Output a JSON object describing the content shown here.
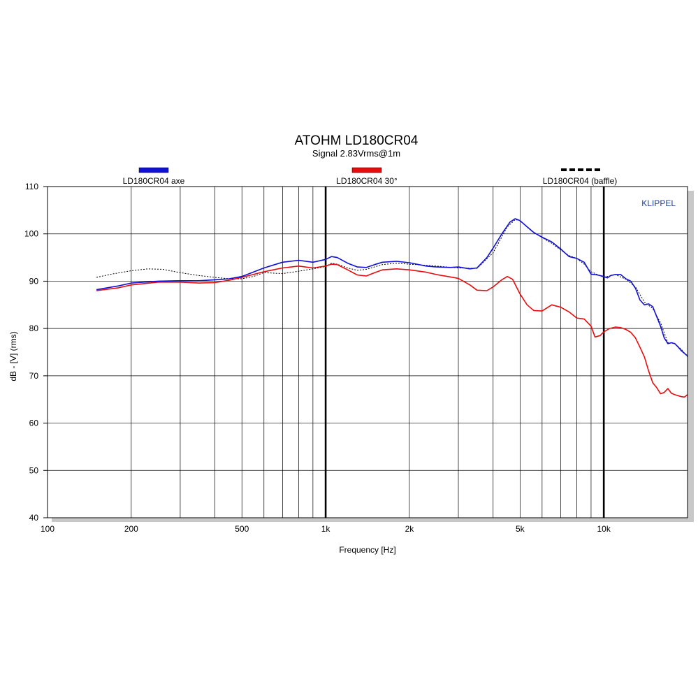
{
  "chart_data": {
    "type": "line",
    "title": "ATOHM LD180CR04",
    "subtitle": "Signal 2.83Vrms@1m",
    "xlabel": "Frequency [Hz]",
    "ylabel": "dB - [V] (rms)",
    "brand": "KLIPPEL",
    "x_scale": "log",
    "xlim": [
      100,
      20000
    ],
    "ylim": [
      40,
      110
    ],
    "x_ticks": [
      {
        "value": 100,
        "label": "100"
      },
      {
        "value": 200,
        "label": "200"
      },
      {
        "value": 500,
        "label": "500"
      },
      {
        "value": 1000,
        "label": "1k"
      },
      {
        "value": 2000,
        "label": "2k"
      },
      {
        "value": 5000,
        "label": "5k"
      },
      {
        "value": 10000,
        "label": "10k"
      }
    ],
    "y_ticks": [
      40,
      50,
      60,
      70,
      80,
      90,
      100,
      110
    ],
    "grid": true,
    "legend_position": "top",
    "series": [
      {
        "name": "LD180CR04 axe",
        "color": "#1010d8",
        "style": "solid",
        "points": [
          [
            150,
            88.2
          ],
          [
            180,
            89
          ],
          [
            200,
            89.6
          ],
          [
            250,
            90
          ],
          [
            300,
            90.1
          ],
          [
            350,
            90.1
          ],
          [
            400,
            90.3
          ],
          [
            450,
            90.5
          ],
          [
            500,
            91
          ],
          [
            600,
            92.8
          ],
          [
            700,
            94
          ],
          [
            800,
            94.4
          ],
          [
            900,
            94
          ],
          [
            1000,
            94.6
          ],
          [
            1050,
            95.2
          ],
          [
            1100,
            95
          ],
          [
            1200,
            93.8
          ],
          [
            1300,
            93
          ],
          [
            1400,
            92.9
          ],
          [
            1500,
            93.5
          ],
          [
            1600,
            94
          ],
          [
            1800,
            94.2
          ],
          [
            2000,
            93.9
          ],
          [
            2300,
            93.2
          ],
          [
            2500,
            93
          ],
          [
            2800,
            92.9
          ],
          [
            3000,
            93
          ],
          [
            3300,
            92.6
          ],
          [
            3500,
            92.8
          ],
          [
            3800,
            95
          ],
          [
            4000,
            97
          ],
          [
            4300,
            100
          ],
          [
            4600,
            102.5
          ],
          [
            4800,
            103.2
          ],
          [
            5000,
            102.8
          ],
          [
            5300,
            101.5
          ],
          [
            5600,
            100.3
          ],
          [
            6000,
            99.3
          ],
          [
            6500,
            98.3
          ],
          [
            7000,
            96.8
          ],
          [
            7500,
            95.2
          ],
          [
            8000,
            94.8
          ],
          [
            8500,
            94
          ],
          [
            9000,
            91.5
          ],
          [
            9500,
            91.3
          ],
          [
            10000,
            91
          ],
          [
            10300,
            90.7
          ],
          [
            10600,
            91.2
          ],
          [
            11000,
            91.4
          ],
          [
            11500,
            91.4
          ],
          [
            12000,
            90.5
          ],
          [
            12500,
            90
          ],
          [
            13000,
            88.5
          ],
          [
            13500,
            86
          ],
          [
            14000,
            85
          ],
          [
            14500,
            85.2
          ],
          [
            15000,
            84.6
          ],
          [
            15500,
            82.5
          ],
          [
            16000,
            80.5
          ],
          [
            16500,
            78
          ],
          [
            17000,
            76.8
          ],
          [
            17500,
            77
          ],
          [
            18000,
            76.8
          ],
          [
            18500,
            76.1
          ],
          [
            19000,
            75.3
          ],
          [
            20000,
            74.2
          ]
        ]
      },
      {
        "name": "LD180CR04 30°",
        "color": "#e80c0c",
        "style": "solid",
        "points": [
          [
            150,
            88
          ],
          [
            180,
            88.6
          ],
          [
            200,
            89.2
          ],
          [
            250,
            89.8
          ],
          [
            300,
            89.8
          ],
          [
            350,
            89.6
          ],
          [
            400,
            89.7
          ],
          [
            450,
            90.2
          ],
          [
            500,
            90.8
          ],
          [
            600,
            92
          ],
          [
            700,
            92.8
          ],
          [
            800,
            93.2
          ],
          [
            900,
            92.8
          ],
          [
            1000,
            93.2
          ],
          [
            1050,
            93.6
          ],
          [
            1100,
            93.5
          ],
          [
            1200,
            92.4
          ],
          [
            1300,
            91.3
          ],
          [
            1400,
            91.1
          ],
          [
            1500,
            91.8
          ],
          [
            1600,
            92.4
          ],
          [
            1800,
            92.6
          ],
          [
            2000,
            92.4
          ],
          [
            2300,
            91.9
          ],
          [
            2500,
            91.4
          ],
          [
            2800,
            90.9
          ],
          [
            3000,
            90.6
          ],
          [
            3300,
            89.2
          ],
          [
            3500,
            88.1
          ],
          [
            3800,
            88
          ],
          [
            4000,
            88.8
          ],
          [
            4300,
            90.3
          ],
          [
            4500,
            91
          ],
          [
            4700,
            90.4
          ],
          [
            5000,
            87.3
          ],
          [
            5300,
            85
          ],
          [
            5600,
            83.8
          ],
          [
            6000,
            83.7
          ],
          [
            6500,
            85
          ],
          [
            7000,
            84.5
          ],
          [
            7500,
            83.5
          ],
          [
            8000,
            82.2
          ],
          [
            8500,
            82
          ],
          [
            9000,
            80.5
          ],
          [
            9300,
            78.2
          ],
          [
            9700,
            78.5
          ],
          [
            10000,
            79.3
          ],
          [
            10500,
            80
          ],
          [
            11000,
            80.3
          ],
          [
            11500,
            80.2
          ],
          [
            12000,
            79.8
          ],
          [
            12500,
            79.2
          ],
          [
            13000,
            78
          ],
          [
            13500,
            76
          ],
          [
            14000,
            74
          ],
          [
            14500,
            71
          ],
          [
            15000,
            68.5
          ],
          [
            15500,
            67.5
          ],
          [
            16000,
            66.2
          ],
          [
            16500,
            66.5
          ],
          [
            17000,
            67.3
          ],
          [
            17500,
            66.3
          ],
          [
            18000,
            66
          ],
          [
            19000,
            65.6
          ],
          [
            19500,
            65.5
          ],
          [
            20000,
            66
          ]
        ]
      },
      {
        "name": "LD180CR04 (baffle)",
        "color": "#000000",
        "style": "dashed",
        "points": [
          [
            150,
            90.8
          ],
          [
            170,
            91.5
          ],
          [
            200,
            92.2
          ],
          [
            230,
            92.6
          ],
          [
            260,
            92.5
          ],
          [
            300,
            91.8
          ],
          [
            350,
            91.2
          ],
          [
            400,
            90.8
          ],
          [
            450,
            90.5
          ],
          [
            500,
            90.5
          ],
          [
            550,
            91
          ],
          [
            600,
            91.8
          ],
          [
            700,
            91.6
          ],
          [
            800,
            92.1
          ],
          [
            900,
            92.6
          ],
          [
            1000,
            93.1
          ],
          [
            1050,
            93.8
          ],
          [
            1100,
            93.6
          ],
          [
            1200,
            92.8
          ],
          [
            1300,
            92.3
          ],
          [
            1400,
            92.5
          ],
          [
            1600,
            93.5
          ],
          [
            1800,
            93.8
          ],
          [
            2000,
            93.6
          ],
          [
            2500,
            93.2
          ],
          [
            3000,
            92.8
          ],
          [
            3500,
            92.7
          ],
          [
            4000,
            96
          ],
          [
            4500,
            101.5
          ],
          [
            4800,
            103
          ],
          [
            5000,
            102.8
          ],
          [
            5500,
            100.6
          ],
          [
            6000,
            99.2
          ],
          [
            6500,
            98
          ],
          [
            7000,
            96.6
          ],
          [
            7500,
            95.4
          ],
          [
            8000,
            94.8
          ],
          [
            8500,
            93.6
          ],
          [
            9000,
            92
          ],
          [
            10000,
            90.8
          ],
          [
            11000,
            91.4
          ],
          [
            12000,
            90.4
          ],
          [
            13000,
            88.8
          ],
          [
            14000,
            85.6
          ],
          [
            15000,
            84.2
          ],
          [
            16000,
            81.2
          ],
          [
            17000,
            77
          ],
          [
            18000,
            76.8
          ],
          [
            19000,
            75.6
          ],
          [
            20000,
            74
          ]
        ]
      }
    ]
  }
}
